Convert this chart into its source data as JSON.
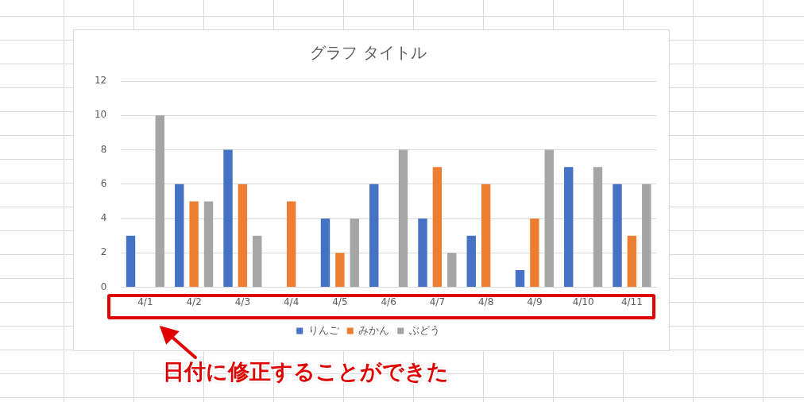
{
  "chart_data": {
    "type": "bar",
    "title": "グラフ タイトル",
    "categories": [
      "4/1",
      "4/2",
      "4/3",
      "4/4",
      "4/5",
      "4/6",
      "4/7",
      "4/8",
      "4/9",
      "4/10",
      "4/11"
    ],
    "series": [
      {
        "name": "りんご",
        "color": "#4472c4",
        "values": [
          3,
          6,
          8,
          0,
          4,
          6,
          4,
          3,
          1,
          7,
          6
        ]
      },
      {
        "name": "みかん",
        "color": "#ed7d31",
        "values": [
          0,
          5,
          6,
          5,
          2,
          0,
          7,
          6,
          4,
          0,
          3
        ]
      },
      {
        "name": "ぶどう",
        "color": "#a5a5a5",
        "values": [
          10,
          5,
          3,
          0,
          4,
          8,
          2,
          0,
          8,
          7,
          6
        ]
      }
    ],
    "ylim": [
      0,
      12
    ],
    "yticks": [
      0,
      2,
      4,
      6,
      8,
      10,
      12
    ],
    "grid": "y",
    "legend": "bottom",
    "annotations": [
      "日付に修正することができた"
    ]
  }
}
